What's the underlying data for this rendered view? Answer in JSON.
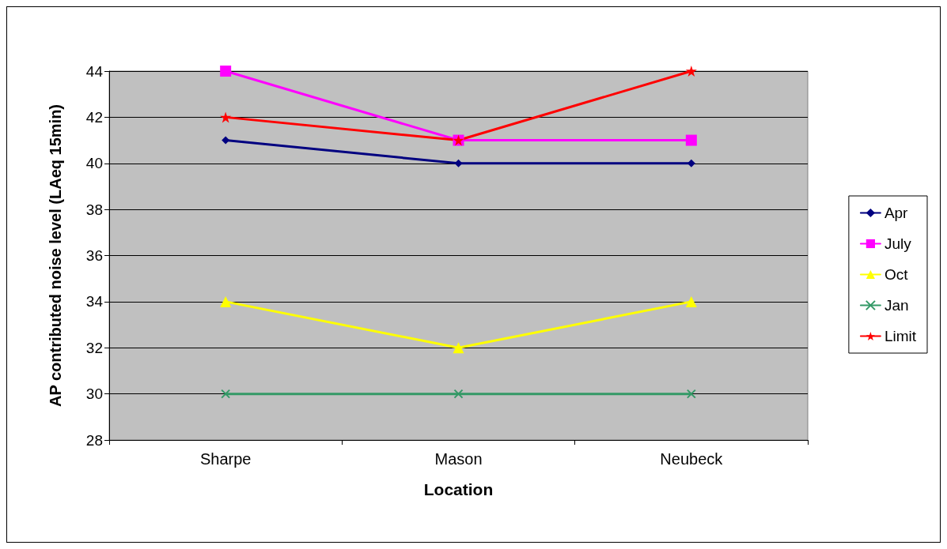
{
  "chart_data": {
    "type": "line",
    "xlabel": "Location",
    "ylabel": "AP contributed noise level (LAeq 15min)",
    "categories": [
      "Sharpe",
      "Mason",
      "Neubeck"
    ],
    "series": [
      {
        "name": "Apr",
        "color": "#000080",
        "values": [
          41,
          40,
          40
        ],
        "marker": "diamond"
      },
      {
        "name": "July",
        "color": "#ff00ff",
        "values": [
          44,
          41,
          41
        ],
        "marker": "square"
      },
      {
        "name": "Oct",
        "color": "#ffff00",
        "values": [
          34,
          32,
          34
        ],
        "marker": "triangle"
      },
      {
        "name": "Jan",
        "color": "#339966",
        "values": [
          30,
          30,
          30
        ],
        "marker": "cross"
      },
      {
        "name": "Limit",
        "color": "#ff0000",
        "values": [
          42,
          41,
          44
        ],
        "marker": "star"
      }
    ],
    "ylim": [
      28,
      44
    ],
    "yticks": [
      28,
      30,
      32,
      34,
      36,
      38,
      40,
      42,
      44
    ],
    "grid": "y",
    "legend": "right",
    "line_style": "solid"
  }
}
